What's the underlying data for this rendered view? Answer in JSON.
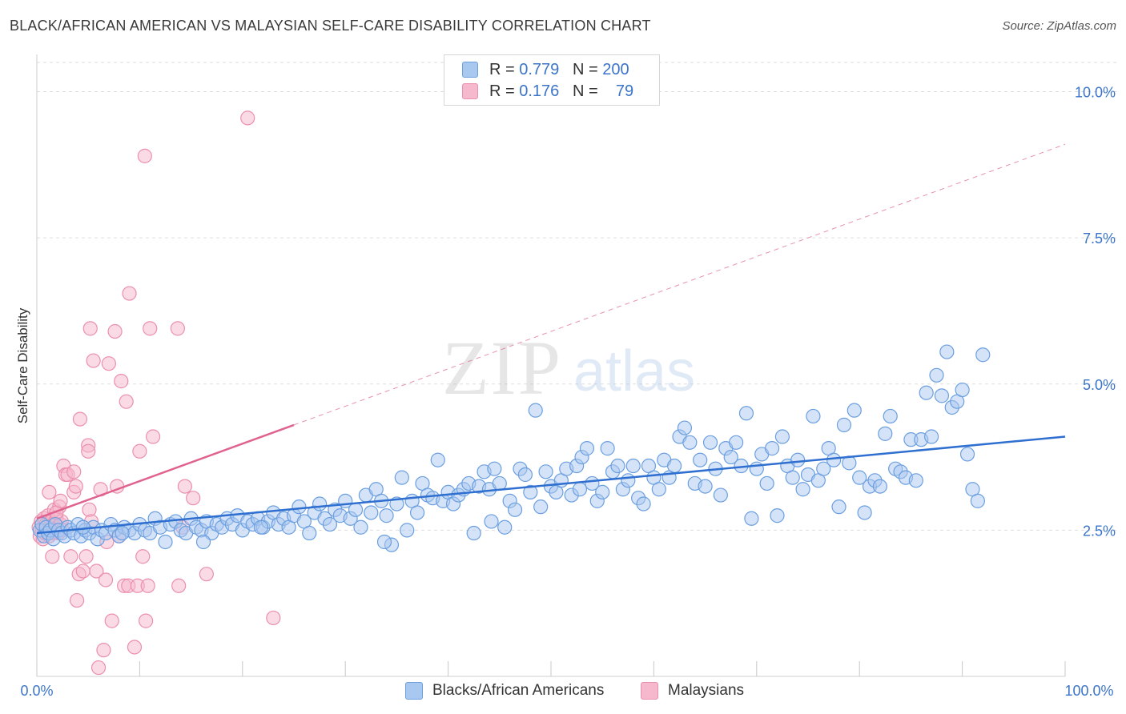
{
  "header": {
    "title": "BLACK/AFRICAN AMERICAN VS MALAYSIAN SELF-CARE DISABILITY CORRELATION CHART",
    "source": "Source: ZipAtlas.com"
  },
  "watermark": {
    "zip": "ZIP",
    "atlas": "atlas"
  },
  "legend": {
    "rows": [
      {
        "name": "Blacks/African Americans",
        "r_label": "R =",
        "r_value": "0.779",
        "n_label": "N =",
        "n_value": "200",
        "color": "#a9c8f0"
      },
      {
        "name": "Malaysians",
        "r_label": "R =",
        "r_value": "0.176",
        "n_label": "N =",
        "n_value": "79",
        "color": "#f6b8cc"
      }
    ]
  },
  "colors": {
    "blue_fill": "#a9c8f0",
    "blue_stroke": "#6b9fe0",
    "blue_line": "#2f6fd0",
    "pink_fill": "#f6b8cc",
    "pink_stroke": "#ec8fae",
    "pink_line": "#e0628f",
    "axis_text": "#3b74c9",
    "grid": "#dddddd"
  },
  "chart_data": {
    "type": "scatter",
    "title": "BLACK/AFRICAN AMERICAN VS MALAYSIAN SELF-CARE DISABILITY CORRELATION CHART",
    "xlabel": "",
    "ylabel": "Self-Care Disability",
    "xlim": [
      0,
      100
    ],
    "ylim": [
      0,
      10.5
    ],
    "x_tick_labels": [
      "0.0%",
      "100.0%"
    ],
    "y_ticks": [
      2.5,
      5.0,
      7.5,
      10.0
    ],
    "y_tick_labels": [
      "2.5%",
      "5.0%",
      "7.5%",
      "10.0%"
    ],
    "grid": true,
    "series": [
      {
        "name": "Blacks/African Americans",
        "R": 0.779,
        "N": 200,
        "trend": {
          "x": [
            0,
            100
          ],
          "y": [
            2.45,
            4.1
          ],
          "style": "solid"
        },
        "points": [
          [
            0.3,
            2.5
          ],
          [
            0.5,
            2.6
          ],
          [
            0.7,
            2.4
          ],
          [
            0.9,
            2.55
          ],
          [
            1.1,
            2.45
          ],
          [
            1.3,
            2.5
          ],
          [
            1.6,
            2.35
          ],
          [
            1.8,
            2.6
          ],
          [
            2.1,
            2.5
          ],
          [
            2.4,
            2.45
          ],
          [
            2.7,
            2.4
          ],
          [
            3.0,
            2.55
          ],
          [
            3.3,
            2.5
          ],
          [
            3.6,
            2.45
          ],
          [
            4.0,
            2.6
          ],
          [
            4.3,
            2.4
          ],
          [
            4.7,
            2.5
          ],
          [
            5.1,
            2.45
          ],
          [
            5.5,
            2.55
          ],
          [
            5.9,
            2.35
          ],
          [
            6.3,
            2.5
          ],
          [
            6.7,
            2.45
          ],
          [
            7.2,
            2.6
          ],
          [
            7.6,
            2.5
          ],
          [
            8.0,
            2.4
          ],
          [
            8.5,
            2.55
          ],
          [
            9.0,
            2.5
          ],
          [
            9.5,
            2.45
          ],
          [
            10.0,
            2.6
          ],
          [
            10.5,
            2.5
          ],
          [
            11.0,
            2.45
          ],
          [
            11.5,
            2.7
          ],
          [
            12.0,
            2.55
          ],
          [
            12.5,
            2.3
          ],
          [
            13.0,
            2.6
          ],
          [
            13.5,
            2.65
          ],
          [
            14.0,
            2.5
          ],
          [
            14.5,
            2.45
          ],
          [
            15.0,
            2.7
          ],
          [
            15.5,
            2.55
          ],
          [
            16.0,
            2.5
          ],
          [
            16.5,
            2.65
          ],
          [
            17.0,
            2.45
          ],
          [
            17.5,
            2.6
          ],
          [
            18.0,
            2.55
          ],
          [
            18.5,
            2.7
          ],
          [
            19.0,
            2.6
          ],
          [
            19.5,
            2.75
          ],
          [
            20.0,
            2.5
          ],
          [
            20.5,
            2.65
          ],
          [
            21.0,
            2.6
          ],
          [
            21.5,
            2.7
          ],
          [
            22.0,
            2.55
          ],
          [
            22.5,
            2.65
          ],
          [
            23.0,
            2.8
          ],
          [
            23.5,
            2.6
          ],
          [
            24.0,
            2.7
          ],
          [
            24.5,
            2.55
          ],
          [
            25.0,
            2.75
          ],
          [
            25.5,
            2.9
          ],
          [
            26.0,
            2.65
          ],
          [
            26.5,
            2.45
          ],
          [
            27.0,
            2.8
          ],
          [
            27.5,
            2.95
          ],
          [
            28.0,
            2.7
          ],
          [
            28.5,
            2.6
          ],
          [
            29.0,
            2.85
          ],
          [
            29.5,
            2.75
          ],
          [
            30.0,
            3.0
          ],
          [
            30.5,
            2.7
          ],
          [
            31.0,
            2.85
          ],
          [
            31.5,
            2.55
          ],
          [
            32.0,
            3.1
          ],
          [
            32.5,
            2.8
          ],
          [
            33.0,
            3.2
          ],
          [
            33.5,
            3.0
          ],
          [
            34.0,
            2.75
          ],
          [
            34.5,
            2.25
          ],
          [
            35.0,
            2.95
          ],
          [
            35.5,
            3.4
          ],
          [
            36.0,
            2.5
          ],
          [
            36.5,
            3.0
          ],
          [
            37.0,
            2.8
          ],
          [
            37.5,
            3.3
          ],
          [
            38.0,
            3.1
          ],
          [
            38.5,
            3.05
          ],
          [
            39.0,
            3.7
          ],
          [
            39.5,
            3.0
          ],
          [
            40.0,
            3.15
          ],
          [
            40.5,
            2.95
          ],
          [
            41.0,
            3.1
          ],
          [
            41.5,
            3.2
          ],
          [
            42.0,
            3.3
          ],
          [
            42.5,
            2.45
          ],
          [
            43.0,
            3.25
          ],
          [
            43.5,
            3.5
          ],
          [
            44.0,
            3.2
          ],
          [
            44.5,
            3.55
          ],
          [
            45.0,
            3.3
          ],
          [
            45.5,
            2.55
          ],
          [
            46.0,
            3.0
          ],
          [
            46.5,
            2.85
          ],
          [
            47.0,
            3.55
          ],
          [
            47.5,
            3.45
          ],
          [
            48.0,
            3.15
          ],
          [
            48.5,
            4.55
          ],
          [
            49.0,
            2.9
          ],
          [
            49.5,
            3.5
          ],
          [
            50.0,
            3.25
          ],
          [
            50.5,
            3.15
          ],
          [
            51.0,
            3.35
          ],
          [
            51.5,
            3.55
          ],
          [
            52.0,
            3.1
          ],
          [
            52.5,
            3.6
          ],
          [
            53.0,
            3.75
          ],
          [
            53.5,
            3.9
          ],
          [
            54.0,
            3.3
          ],
          [
            54.5,
            3.0
          ],
          [
            55.0,
            3.15
          ],
          [
            55.5,
            3.9
          ],
          [
            56.0,
            3.5
          ],
          [
            56.5,
            3.6
          ],
          [
            57.0,
            3.2
          ],
          [
            57.5,
            3.35
          ],
          [
            58.0,
            3.6
          ],
          [
            58.5,
            3.05
          ],
          [
            59.0,
            2.95
          ],
          [
            59.5,
            3.6
          ],
          [
            60.0,
            3.4
          ],
          [
            60.5,
            3.2
          ],
          [
            61.0,
            3.7
          ],
          [
            61.5,
            3.4
          ],
          [
            62.0,
            3.6
          ],
          [
            62.5,
            4.1
          ],
          [
            63.0,
            4.25
          ],
          [
            63.5,
            4.0
          ],
          [
            64.0,
            3.3
          ],
          [
            64.5,
            3.7
          ],
          [
            65.0,
            3.25
          ],
          [
            65.5,
            4.0
          ],
          [
            66.0,
            3.55
          ],
          [
            66.5,
            3.1
          ],
          [
            67.0,
            3.9
          ],
          [
            67.5,
            3.75
          ],
          [
            68.0,
            4.0
          ],
          [
            68.5,
            3.6
          ],
          [
            69.0,
            4.5
          ],
          [
            69.5,
            2.7
          ],
          [
            70.0,
            3.55
          ],
          [
            70.5,
            3.8
          ],
          [
            71.0,
            3.3
          ],
          [
            71.5,
            3.9
          ],
          [
            72.0,
            2.75
          ],
          [
            72.5,
            4.1
          ],
          [
            73.0,
            3.6
          ],
          [
            73.5,
            3.4
          ],
          [
            74.0,
            3.7
          ],
          [
            74.5,
            3.2
          ],
          [
            75.0,
            3.45
          ],
          [
            75.5,
            4.45
          ],
          [
            76.0,
            3.35
          ],
          [
            76.5,
            3.55
          ],
          [
            77.0,
            3.9
          ],
          [
            77.5,
            3.7
          ],
          [
            78.0,
            2.9
          ],
          [
            78.5,
            4.3
          ],
          [
            79.0,
            3.65
          ],
          [
            79.5,
            4.55
          ],
          [
            80.0,
            3.4
          ],
          [
            80.5,
            2.8
          ],
          [
            81.0,
            3.25
          ],
          [
            81.5,
            3.35
          ],
          [
            82.0,
            3.25
          ],
          [
            82.5,
            4.15
          ],
          [
            83.0,
            4.45
          ],
          [
            83.5,
            3.55
          ],
          [
            84.0,
            3.5
          ],
          [
            84.5,
            3.4
          ],
          [
            85.0,
            4.05
          ],
          [
            85.5,
            3.35
          ],
          [
            86.0,
            4.05
          ],
          [
            86.5,
            4.85
          ],
          [
            87.0,
            4.1
          ],
          [
            87.5,
            5.15
          ],
          [
            88.0,
            4.8
          ],
          [
            88.5,
            5.55
          ],
          [
            89.0,
            4.6
          ],
          [
            89.5,
            4.7
          ],
          [
            90.0,
            4.9
          ],
          [
            90.5,
            3.8
          ],
          [
            91.0,
            3.2
          ],
          [
            91.5,
            3.0
          ],
          [
            92.0,
            5.5
          ],
          [
            4.5,
            2.55
          ],
          [
            8.3,
            2.45
          ],
          [
            16.2,
            2.3
          ],
          [
            21.8,
            2.55
          ],
          [
            33.8,
            2.3
          ],
          [
            44.2,
            2.65
          ],
          [
            52.8,
            3.2
          ]
        ]
      },
      {
        "name": "Malaysians",
        "R": 0.176,
        "N": 79,
        "trend": {
          "x": [
            0,
            25
          ],
          "y": [
            2.7,
            4.3
          ],
          "style": "solid",
          "extension": {
            "x": [
              25,
              100
            ],
            "y": [
              4.3,
              9.1
            ],
            "style": "dashed"
          }
        },
        "points": [
          [
            0.2,
            2.55
          ],
          [
            0.3,
            2.4
          ],
          [
            0.4,
            2.65
          ],
          [
            0.5,
            2.5
          ],
          [
            0.6,
            2.35
          ],
          [
            0.7,
            2.7
          ],
          [
            0.8,
            2.45
          ],
          [
            0.9,
            2.6
          ],
          [
            1.0,
            2.5
          ],
          [
            1.1,
            2.75
          ],
          [
            1.2,
            2.4
          ],
          [
            1.3,
            2.55
          ],
          [
            1.4,
            2.65
          ],
          [
            1.5,
            2.45
          ],
          [
            1.6,
            2.6
          ],
          [
            1.7,
            2.85
          ],
          [
            1.8,
            2.5
          ],
          [
            1.9,
            2.7
          ],
          [
            2.0,
            2.55
          ],
          [
            2.1,
            2.45
          ],
          [
            2.2,
            2.9
          ],
          [
            2.3,
            2.6
          ],
          [
            2.4,
            2.65
          ],
          [
            2.5,
            2.5
          ],
          [
            1.2,
            3.15
          ],
          [
            1.5,
            2.05
          ],
          [
            1.9,
            2.8
          ],
          [
            2.3,
            3.0
          ],
          [
            2.6,
            3.6
          ],
          [
            2.8,
            3.45
          ],
          [
            3.0,
            3.45
          ],
          [
            3.3,
            2.05
          ],
          [
            3.6,
            3.5
          ],
          [
            3.6,
            3.15
          ],
          [
            3.8,
            3.25
          ],
          [
            3.9,
            1.3
          ],
          [
            4.1,
            1.75
          ],
          [
            4.2,
            4.4
          ],
          [
            4.5,
            1.8
          ],
          [
            4.8,
            2.05
          ],
          [
            5.0,
            3.95
          ],
          [
            5.0,
            3.85
          ],
          [
            5.1,
            2.85
          ],
          [
            5.2,
            5.95
          ],
          [
            5.3,
            2.65
          ],
          [
            5.5,
            5.4
          ],
          [
            5.8,
            1.8
          ],
          [
            6.0,
            0.15
          ],
          [
            6.2,
            3.2
          ],
          [
            6.5,
            0.45
          ],
          [
            6.7,
            1.65
          ],
          [
            6.8,
            2.3
          ],
          [
            7.0,
            5.35
          ],
          [
            7.3,
            0.95
          ],
          [
            7.6,
            5.9
          ],
          [
            7.8,
            3.25
          ],
          [
            8.0,
            2.4
          ],
          [
            8.2,
            5.05
          ],
          [
            8.5,
            1.55
          ],
          [
            8.7,
            4.7
          ],
          [
            8.9,
            1.55
          ],
          [
            9.0,
            6.55
          ],
          [
            9.5,
            0.5
          ],
          [
            9.8,
            1.55
          ],
          [
            10.0,
            3.85
          ],
          [
            10.3,
            2.05
          ],
          [
            10.5,
            8.9
          ],
          [
            10.6,
            0.95
          ],
          [
            10.8,
            1.55
          ],
          [
            11.0,
            5.95
          ],
          [
            11.3,
            4.1
          ],
          [
            13.7,
            5.95
          ],
          [
            13.8,
            1.55
          ],
          [
            14.2,
            2.55
          ],
          [
            14.4,
            3.25
          ],
          [
            15.2,
            3.05
          ],
          [
            16.5,
            1.75
          ],
          [
            23.0,
            1.0
          ],
          [
            20.5,
            9.55
          ]
        ]
      }
    ]
  }
}
